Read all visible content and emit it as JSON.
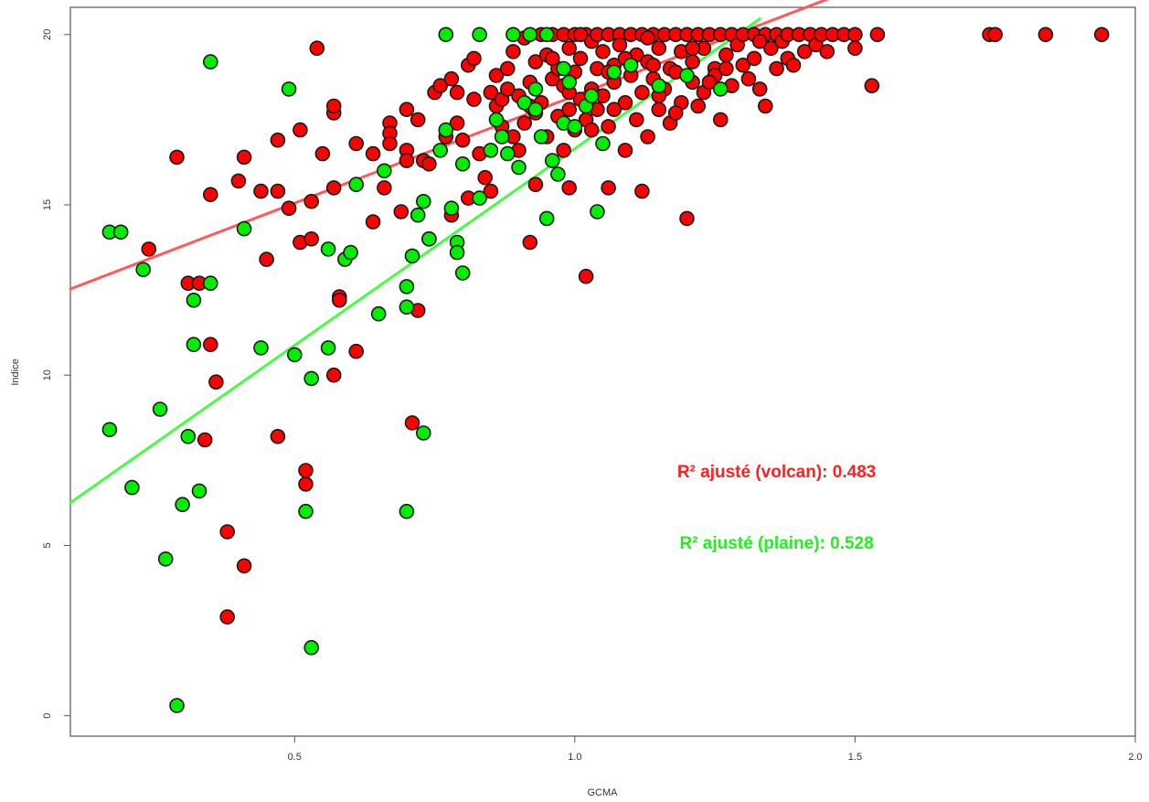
{
  "chart_data": {
    "type": "scatter",
    "title": "",
    "xlabel": "GCMA",
    "ylabel": "Indice",
    "xlim": [
      0.1,
      2.0
    ],
    "ylim": [
      -0.6,
      20.8
    ],
    "x_ticks": [
      0.5,
      1.0,
      1.5,
      2.0
    ],
    "x_tick_labels": [
      "0.5",
      "1.0",
      "1.5",
      "2.0"
    ],
    "y_ticks": [
      0,
      5,
      10,
      15,
      20
    ],
    "y_tick_labels": [
      "0",
      "5",
      "10",
      "15",
      "20"
    ],
    "grid": false,
    "legend": "none",
    "series": [
      {
        "key": "volcan",
        "color": "#ff0000",
        "fit_line": {
          "intercept": 11.9,
          "slope": 6.3,
          "x_range": [
            0.1,
            1.6
          ],
          "color": "#ff5a5a"
        },
        "points": [
          [
            0.24,
            13.7
          ],
          [
            0.29,
            16.4
          ],
          [
            0.31,
            12.7
          ],
          [
            0.33,
            12.7
          ],
          [
            0.35,
            15.3
          ],
          [
            0.35,
            10.9
          ],
          [
            0.36,
            9.8
          ],
          [
            0.34,
            8.1
          ],
          [
            0.38,
            5.4
          ],
          [
            0.38,
            2.9
          ],
          [
            0.41,
            4.4
          ],
          [
            0.4,
            15.7
          ],
          [
            0.41,
            16.4
          ],
          [
            0.45,
            13.4
          ],
          [
            0.44,
            15.4
          ],
          [
            0.47,
            16.9
          ],
          [
            0.47,
            15.4
          ],
          [
            0.47,
            8.2
          ],
          [
            0.49,
            14.9
          ],
          [
            0.51,
            13.9
          ],
          [
            0.51,
            17.2
          ],
          [
            0.52,
            7.2
          ],
          [
            0.52,
            6.8
          ],
          [
            0.53,
            14.0
          ],
          [
            0.53,
            15.1
          ],
          [
            0.54,
            19.6
          ],
          [
            0.55,
            16.5
          ],
          [
            0.57,
            17.7
          ],
          [
            0.57,
            17.9
          ],
          [
            0.57,
            15.5
          ],
          [
            0.58,
            12.3
          ],
          [
            0.58,
            12.2
          ],
          [
            0.57,
            10.0
          ],
          [
            0.61,
            10.7
          ],
          [
            0.61,
            16.8
          ],
          [
            0.64,
            16.5
          ],
          [
            0.64,
            14.5
          ],
          [
            0.67,
            17.4
          ],
          [
            0.67,
            17.1
          ],
          [
            0.66,
            15.5
          ],
          [
            0.67,
            16.8
          ],
          [
            0.69,
            14.8
          ],
          [
            0.7,
            16.6
          ],
          [
            0.7,
            16.3
          ],
          [
            0.7,
            17.8
          ],
          [
            0.71,
            8.6
          ],
          [
            0.72,
            11.9
          ],
          [
            0.73,
            16.3
          ],
          [
            0.72,
            17.5
          ],
          [
            0.74,
            16.2
          ],
          [
            0.74,
            14.0
          ],
          [
            0.75,
            18.3
          ],
          [
            0.76,
            18.5
          ],
          [
            0.77,
            17.0
          ],
          [
            0.78,
            18.7
          ],
          [
            0.79,
            17.4
          ],
          [
            0.79,
            18.3
          ],
          [
            0.78,
            14.7
          ],
          [
            0.8,
            16.9
          ],
          [
            0.81,
            19.1
          ],
          [
            0.81,
            15.2
          ],
          [
            0.82,
            19.3
          ],
          [
            0.82,
            18.1
          ],
          [
            0.83,
            16.5
          ],
          [
            0.84,
            15.8
          ],
          [
            0.85,
            15.4
          ],
          [
            0.85,
            18.3
          ],
          [
            0.86,
            17.9
          ],
          [
            0.86,
            18.8
          ],
          [
            0.87,
            18.1
          ],
          [
            0.87,
            17.3
          ],
          [
            0.88,
            19.0
          ],
          [
            0.88,
            18.4
          ],
          [
            0.89,
            19.5
          ],
          [
            0.89,
            17.0
          ],
          [
            0.9,
            18.2
          ],
          [
            0.9,
            16.6
          ],
          [
            0.91,
            19.9
          ],
          [
            0.91,
            17.4
          ],
          [
            0.92,
            18.6
          ],
          [
            0.92,
            13.9
          ],
          [
            0.93,
            19.2
          ],
          [
            0.93,
            17.7
          ],
          [
            0.93,
            15.6
          ],
          [
            0.94,
            20.0
          ],
          [
            0.94,
            18.0
          ],
          [
            0.95,
            19.4
          ],
          [
            0.95,
            17.0
          ],
          [
            0.96,
            18.7
          ],
          [
            0.96,
            20.0
          ],
          [
            0.97,
            19.0
          ],
          [
            0.97,
            17.6
          ],
          [
            0.98,
            20.0
          ],
          [
            0.98,
            18.5
          ],
          [
            0.98,
            16.6
          ],
          [
            0.99,
            19.6
          ],
          [
            0.99,
            17.8
          ],
          [
            0.99,
            15.5
          ],
          [
            1.0,
            20.0
          ],
          [
            1.0,
            18.9
          ],
          [
            1.0,
            17.2
          ],
          [
            1.01,
            19.3
          ],
          [
            1.01,
            18.1
          ],
          [
            1.02,
            20.0
          ],
          [
            1.02,
            17.5
          ],
          [
            1.02,
            12.9
          ],
          [
            1.03,
            19.8
          ],
          [
            1.03,
            18.4
          ],
          [
            1.04,
            20.0
          ],
          [
            1.04,
            19.0
          ],
          [
            1.04,
            17.8
          ],
          [
            1.05,
            19.5
          ],
          [
            1.05,
            18.2
          ],
          [
            1.06,
            20.0
          ],
          [
            1.06,
            17.3
          ],
          [
            1.06,
            15.5
          ],
          [
            1.07,
            19.1
          ],
          [
            1.07,
            18.6
          ],
          [
            1.08,
            20.0
          ],
          [
            1.08,
            19.7
          ],
          [
            1.09,
            18.0
          ],
          [
            1.09,
            16.6
          ],
          [
            1.1,
            20.0
          ],
          [
            1.1,
            18.8
          ],
          [
            1.11,
            19.4
          ],
          [
            1.11,
            17.5
          ],
          [
            1.12,
            20.0
          ],
          [
            1.12,
            18.3
          ],
          [
            1.12,
            15.4
          ],
          [
            1.13,
            19.2
          ],
          [
            1.13,
            17.0
          ],
          [
            1.14,
            20.0
          ],
          [
            1.14,
            18.7
          ],
          [
            1.15,
            19.6
          ],
          [
            1.15,
            17.8
          ],
          [
            1.16,
            20.0
          ],
          [
            1.16,
            18.4
          ],
          [
            1.17,
            19.0
          ],
          [
            1.17,
            17.4
          ],
          [
            1.18,
            20.0
          ],
          [
            1.18,
            18.9
          ],
          [
            1.19,
            19.5
          ],
          [
            1.19,
            18.0
          ],
          [
            1.2,
            20.0
          ],
          [
            1.2,
            14.6
          ],
          [
            1.21,
            19.2
          ],
          [
            1.21,
            18.6
          ],
          [
            1.22,
            20.0
          ],
          [
            1.22,
            17.9
          ],
          [
            1.23,
            19.6
          ],
          [
            1.23,
            18.3
          ],
          [
            1.24,
            20.0
          ],
          [
            1.25,
            19.0
          ],
          [
            1.25,
            18.8
          ],
          [
            1.26,
            20.0
          ],
          [
            1.26,
            17.5
          ],
          [
            1.27,
            19.4
          ],
          [
            1.28,
            20.0
          ],
          [
            1.28,
            18.5
          ],
          [
            1.29,
            19.7
          ],
          [
            1.3,
            20.0
          ],
          [
            1.3,
            19.1
          ],
          [
            1.31,
            18.7
          ],
          [
            1.32,
            20.0
          ],
          [
            1.32,
            19.3
          ],
          [
            1.33,
            18.4
          ],
          [
            1.34,
            20.0
          ],
          [
            1.34,
            17.9
          ],
          [
            1.35,
            19.6
          ],
          [
            1.36,
            20.0
          ],
          [
            1.36,
            19.0
          ],
          [
            1.37,
            19.8
          ],
          [
            1.38,
            20.0
          ],
          [
            1.38,
            19.3
          ],
          [
            1.39,
            19.1
          ],
          [
            1.4,
            20.0
          ],
          [
            1.41,
            19.5
          ],
          [
            1.42,
            20.0
          ],
          [
            1.43,
            19.7
          ],
          [
            1.44,
            20.0
          ],
          [
            1.45,
            19.5
          ],
          [
            1.46,
            20.0
          ],
          [
            1.48,
            20.0
          ],
          [
            1.5,
            20.0
          ],
          [
            1.5,
            19.6
          ],
          [
            1.53,
            18.5
          ],
          [
            1.54,
            20.0
          ],
          [
            1.74,
            20.0
          ],
          [
            1.75,
            20.0
          ],
          [
            1.84,
            20.0
          ],
          [
            1.94,
            20.0
          ],
          [
            1.06,
            18.9
          ],
          [
            1.14,
            19.1
          ],
          [
            1.21,
            19.6
          ],
          [
            1.27,
            19.0
          ],
          [
            0.96,
            19.3
          ],
          [
            1.03,
            17.2
          ],
          [
            1.09,
            19.3
          ],
          [
            1.15,
            18.2
          ],
          [
            1.33,
            19.8
          ],
          [
            1.24,
            18.6
          ],
          [
            1.18,
            17.7
          ],
          [
            0.99,
            18.3
          ],
          [
            1.01,
            20.0
          ],
          [
            1.07,
            17.8
          ],
          [
            1.13,
            19.9
          ],
          [
            0.92,
            17.9
          ]
        ]
      },
      {
        "key": "plaine",
        "color": "#00ee00",
        "fit_line": {
          "intercept": 5.1,
          "slope": 11.55,
          "x_range": [
            0.1,
            1.33
          ],
          "color": "#44ff44"
        },
        "points": [
          [
            0.17,
            14.2
          ],
          [
            0.19,
            14.2
          ],
          [
            0.17,
            8.4
          ],
          [
            0.21,
            6.7
          ],
          [
            0.23,
            13.1
          ],
          [
            0.26,
            9.0
          ],
          [
            0.27,
            4.6
          ],
          [
            0.29,
            0.3
          ],
          [
            0.3,
            6.2
          ],
          [
            0.31,
            8.2
          ],
          [
            0.32,
            12.2
          ],
          [
            0.32,
            10.9
          ],
          [
            0.33,
            6.6
          ],
          [
            0.35,
            19.2
          ],
          [
            0.35,
            12.7
          ],
          [
            0.41,
            14.3
          ],
          [
            0.44,
            10.8
          ],
          [
            0.49,
            18.4
          ],
          [
            0.5,
            10.6
          ],
          [
            0.52,
            6.0
          ],
          [
            0.53,
            2.0
          ],
          [
            0.53,
            9.9
          ],
          [
            0.56,
            13.7
          ],
          [
            0.56,
            10.8
          ],
          [
            0.59,
            13.4
          ],
          [
            0.6,
            13.6
          ],
          [
            0.61,
            15.6
          ],
          [
            0.65,
            11.8
          ],
          [
            0.66,
            16.0
          ],
          [
            0.7,
            12.0
          ],
          [
            0.7,
            12.6
          ],
          [
            0.7,
            6.0
          ],
          [
            0.71,
            13.5
          ],
          [
            0.72,
            14.7
          ],
          [
            0.73,
            15.1
          ],
          [
            0.73,
            8.3
          ],
          [
            0.74,
            14.0
          ],
          [
            0.76,
            16.6
          ],
          [
            0.77,
            20.0
          ],
          [
            0.77,
            17.2
          ],
          [
            0.78,
            14.9
          ],
          [
            0.79,
            13.9
          ],
          [
            0.79,
            13.6
          ],
          [
            0.8,
            16.2
          ],
          [
            0.8,
            13.0
          ],
          [
            0.83,
            20.0
          ],
          [
            0.83,
            15.2
          ],
          [
            0.85,
            16.6
          ],
          [
            0.86,
            17.5
          ],
          [
            0.87,
            17.0
          ],
          [
            0.88,
            16.5
          ],
          [
            0.89,
            20.0
          ],
          [
            0.9,
            16.1
          ],
          [
            0.91,
            18.0
          ],
          [
            0.92,
            20.0
          ],
          [
            0.93,
            17.8
          ],
          [
            0.94,
            17.0
          ],
          [
            0.95,
            20.0
          ],
          [
            0.96,
            16.3
          ],
          [
            0.97,
            15.9
          ],
          [
            0.98,
            17.4
          ],
          [
            0.99,
            18.6
          ],
          [
            1.0,
            17.3
          ],
          [
            1.02,
            17.9
          ],
          [
            1.04,
            14.8
          ],
          [
            1.05,
            16.8
          ],
          [
            1.07,
            18.9
          ],
          [
            1.1,
            19.1
          ],
          [
            1.15,
            18.5
          ],
          [
            1.2,
            18.8
          ],
          [
            1.26,
            18.4
          ],
          [
            0.95,
            14.6
          ],
          [
            0.93,
            18.4
          ],
          [
            0.98,
            19.0
          ],
          [
            1.03,
            18.2
          ]
        ]
      }
    ],
    "annotations": [
      {
        "key": "volcan",
        "text": "R²  ajusté (volcan): 0.483",
        "color": "#ff2020",
        "x": 1.36,
        "y": 7.0
      },
      {
        "key": "plaine",
        "text": "R²  ajusté (plaine): 0.528",
        "color": "#22ee22",
        "x": 1.36,
        "y": 4.9
      }
    ]
  }
}
